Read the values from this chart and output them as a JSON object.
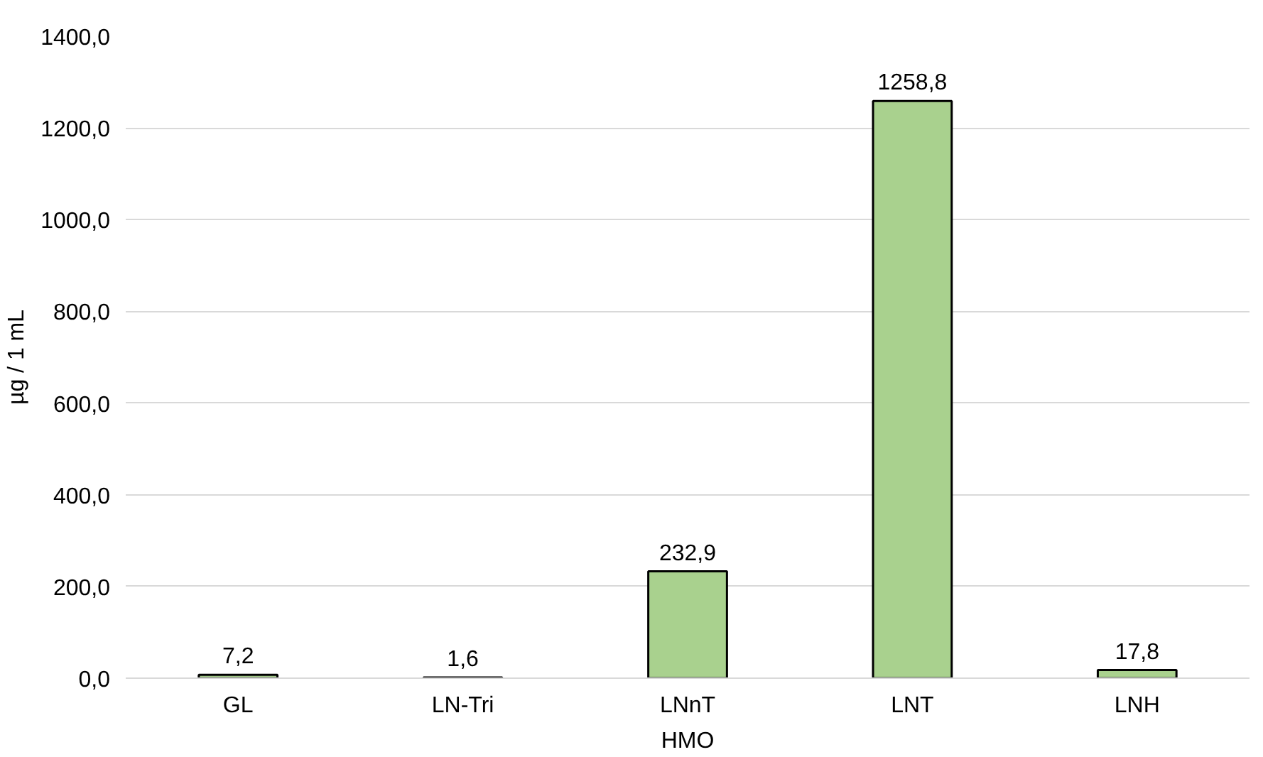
{
  "chart_data": {
    "type": "bar",
    "xlabel": "HMO",
    "ylabel": "µg / 1 mL",
    "categories": [
      "GL",
      "LN-Tri",
      "LNnT",
      "LNT",
      "LNH"
    ],
    "values": [
      7.2,
      1.6,
      232.9,
      1258.8,
      17.8
    ],
    "value_labels": [
      "7,2",
      "1,6",
      "232,9",
      "1258,8",
      "17,8"
    ],
    "color": "#a9d18e",
    "ylim": [
      0,
      1400
    ],
    "yticks": [
      {
        "value": 0,
        "label": "0,0"
      },
      {
        "value": 200,
        "label": "200,0"
      },
      {
        "value": 400,
        "label": "400,0"
      },
      {
        "value": 600,
        "label": "600,0"
      },
      {
        "value": 800,
        "label": "800,0"
      },
      {
        "value": 1000,
        "label": "1000,0"
      },
      {
        "value": 1200,
        "label": "1200,0"
      },
      {
        "value": 1400,
        "label": "1400,0"
      }
    ],
    "grid": "y"
  }
}
